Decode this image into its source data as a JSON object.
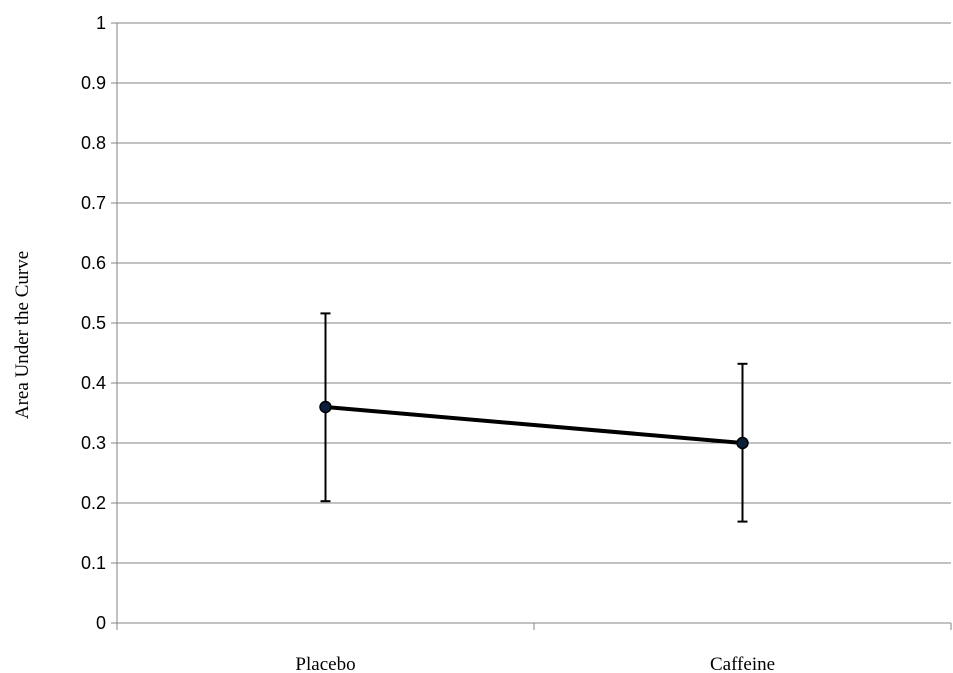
{
  "chart_data": {
    "type": "line",
    "categories": [
      "Placebo",
      "Caffeine"
    ],
    "series": [
      {
        "values": [
          0.36,
          0.3
        ],
        "error_upper": [
          0.516,
          0.432
        ],
        "error_lower": [
          0.203,
          0.169
        ]
      }
    ],
    "ylabel": "Area Under the Curve",
    "ylim": [
      0,
      1
    ],
    "y_ticks": [
      "0",
      "0.1",
      "0.2",
      "0.3",
      "0.4",
      "0.5",
      "0.6",
      "0.7",
      "0.8",
      "0.9",
      "1"
    ],
    "grid": true,
    "line_color": "#000000",
    "marker_color": "#0b1f3a",
    "grid_color": "#868686"
  }
}
